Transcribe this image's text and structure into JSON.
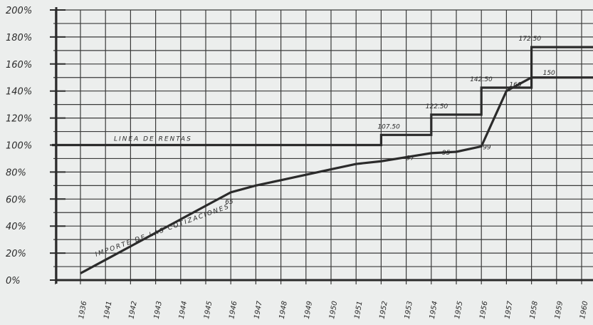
{
  "chart_data": {
    "type": "line",
    "title": "",
    "xlabel": "",
    "ylabel": "",
    "x_ticks": [
      "1936",
      "1941",
      "1942",
      "1943",
      "1944",
      "1945",
      "1946",
      "1947",
      "1948",
      "1949",
      "1950",
      "1951",
      "1952",
      "1953",
      "1954",
      "1955",
      "1956",
      "1957",
      "1958",
      "1959",
      "1960"
    ],
    "y_ticks": [
      "0%",
      "20%",
      "40%",
      "60%",
      "80%",
      "100%",
      "120%",
      "140%",
      "160%",
      "180%",
      "200%"
    ],
    "ylim": [
      0,
      200
    ],
    "grid": true,
    "legend": "none",
    "series": [
      {
        "name": "LINEA DE RENTAS",
        "step": true,
        "x": [
          "1936",
          "1941",
          "1942",
          "1943",
          "1944",
          "1945",
          "1946",
          "1947",
          "1948",
          "1949",
          "1950",
          "1951",
          "1952",
          "1953",
          "1954",
          "1955",
          "1956",
          "1957",
          "1958",
          "1959",
          "1960"
        ],
        "values": [
          100,
          100,
          100,
          100,
          100,
          100,
          100,
          100,
          100,
          100,
          100,
          100,
          107.5,
          107.5,
          122.5,
          122.5,
          142.5,
          142.5,
          172.5,
          172.5,
          172.5
        ]
      },
      {
        "name": "IMPORTE DE LAS COTIZACIONES",
        "step": false,
        "x": [
          "1936",
          "1941",
          "1942",
          "1943",
          "1944",
          "1945",
          "1946",
          "1947",
          "1948",
          "1949",
          "1950",
          "1951",
          "1952",
          "1953",
          "1954",
          "1955",
          "1956",
          "1957",
          "1958",
          "1959",
          "1960"
        ],
        "values": [
          5,
          15,
          25,
          35,
          45,
          55,
          65,
          70,
          74,
          78,
          82,
          86,
          88,
          91,
          94,
          95,
          99,
          140,
          150,
          150,
          150
        ]
      }
    ],
    "annotations": [
      "107.50",
      "122.50",
      "142.50",
      "172.50",
      "160",
      "150",
      "99",
      "95",
      "97",
      "65"
    ]
  },
  "colors": {
    "paper": "#eceeed",
    "ink": "#2b2b2b",
    "grid": "#3a3a3a"
  }
}
